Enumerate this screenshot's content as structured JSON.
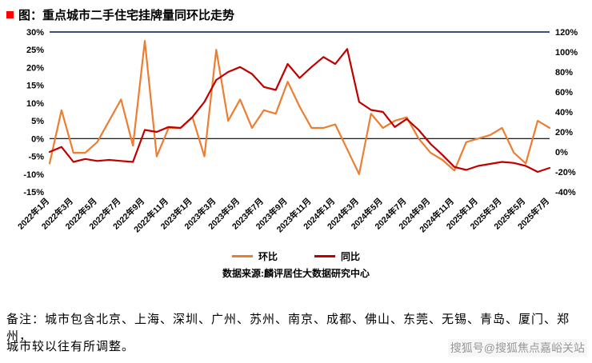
{
  "page": {
    "title": "图：重点城市二手住宅挂牌量同环比走势",
    "source": "数据来源:麟评居住大数据研究中心",
    "note_line1": "备注：城市包含北京、上海、深圳、广州、苏州、南京、成都、佛山、东莞、无锡、青岛、厦门、郑州，",
    "note_line2": "城市较以往有所调整。",
    "watermark": "搜狐号@搜狐焦点嘉峪关站"
  },
  "colors": {
    "mom_line": "#ED7D31",
    "yoy_line": "#C00000",
    "zero_line": "#000000",
    "plot_top_border": "#1F3864",
    "title_bullet": "#FF0000"
  },
  "chart_data": {
    "type": "line",
    "title": "重点城市二手住宅挂牌量同环比走势",
    "x": [
      "2022年1月",
      "2022年2月",
      "2022年3月",
      "2022年4月",
      "2022年5月",
      "2022年6月",
      "2022年7月",
      "2022年8月",
      "2022年9月",
      "2022年10月",
      "2022年11月",
      "2022年12月",
      "2023年1月",
      "2023年2月",
      "2023年3月",
      "2023年4月",
      "2023年5月",
      "2023年6月",
      "2023年7月",
      "2023年8月",
      "2023年9月",
      "2023年10月",
      "2023年11月",
      "2023年12月",
      "2024年1月",
      "2024年2月",
      "2024年3月",
      "2024年4月",
      "2024年5月",
      "2024年6月",
      "2024年7月",
      "2024年8月",
      "2024年9月",
      "2024年10月",
      "2024年11月",
      "2024年12月",
      "2025年1月",
      "2025年2月",
      "2025年3月",
      "2025年4月",
      "2025年5月",
      "2025年6月",
      "2025年7月"
    ],
    "x_tick_step": 2,
    "left_axis": {
      "min": -15,
      "max": 30,
      "step": 5,
      "suffix": "%"
    },
    "right_axis": {
      "min": -40,
      "max": 120,
      "step": 20,
      "suffix": "%"
    },
    "legend_position": "bottom",
    "series": [
      {
        "key": "mom",
        "name": "环比",
        "axis": "left",
        "color": "#ED7D31",
        "values": [
          -7,
          8,
          -4,
          -4,
          -1,
          5,
          11,
          -2,
          27.5,
          -5,
          3,
          3,
          6,
          -5,
          25,
          5,
          11,
          3,
          8,
          7,
          16,
          9,
          3,
          3,
          4,
          -3,
          -10,
          7,
          3,
          5,
          6,
          0,
          -4,
          -6,
          -9,
          -1,
          0,
          1,
          3,
          -4,
          -7,
          5,
          3
        ]
      },
      {
        "key": "yoy",
        "name": "同比",
        "axis": "right",
        "color": "#C00000",
        "values": [
          0,
          5,
          -10,
          -7,
          -9,
          -8,
          -9,
          -10,
          22,
          20,
          25,
          24,
          35,
          50,
          72,
          80,
          85,
          78,
          65,
          62,
          88,
          74,
          85,
          95,
          88,
          103,
          50,
          42,
          40,
          25,
          33,
          22,
          8,
          -3,
          -15,
          -18,
          -14,
          -12,
          -10,
          -11,
          -14,
          -20,
          -16
        ]
      }
    ]
  }
}
